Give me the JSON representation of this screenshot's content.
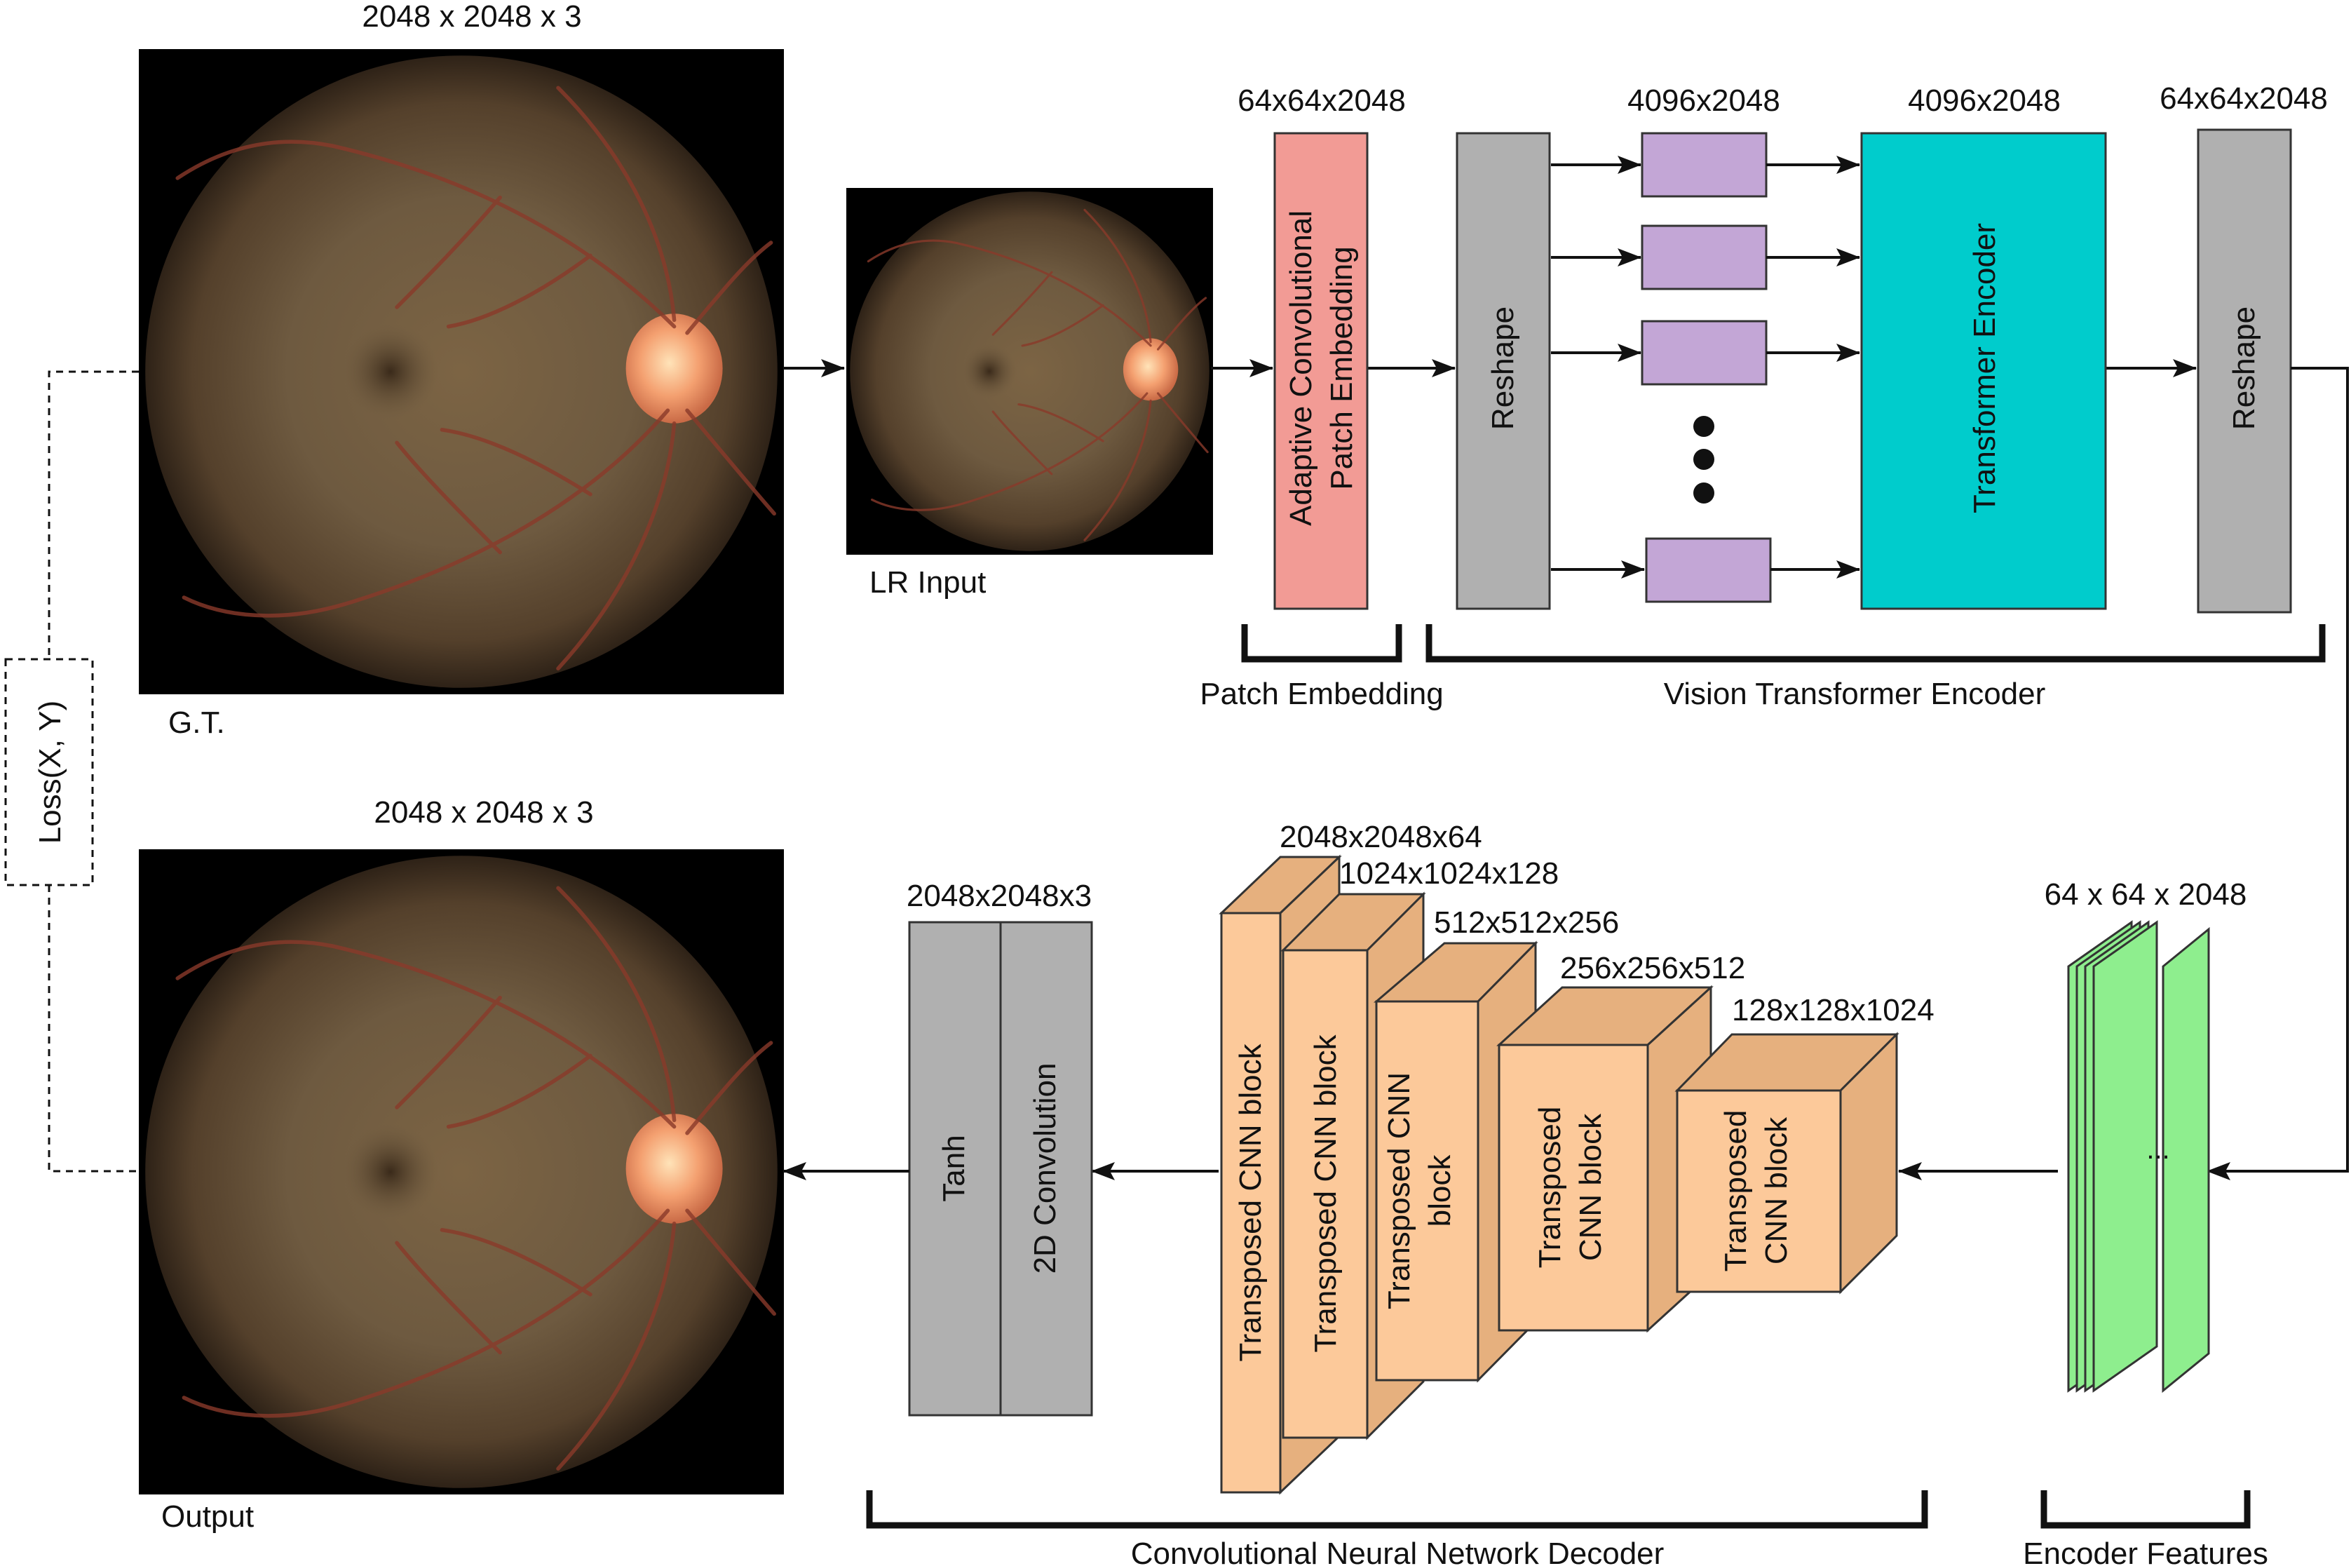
{
  "images": {
    "gt": {
      "size_label": "2048 x 2048 x 3",
      "caption": "G.T."
    },
    "lr": {
      "caption": "LR Input"
    },
    "output": {
      "size_label": "2048 x 2048 x 3",
      "caption": "Output"
    }
  },
  "loss": {
    "label": "Loss(X, Y)"
  },
  "encoder": {
    "patch_embed": {
      "dim": "64x64x2048",
      "label_line1": "Adaptive Convolutional",
      "label_line2": "Patch Embedding"
    },
    "reshape_in": {
      "label": "Reshape"
    },
    "tokens": {
      "dim": "4096x2048"
    },
    "transformer": {
      "dim": "4096x2048",
      "label": "Transformer Encoder"
    },
    "reshape_out": {
      "dim": "64x64x2048",
      "label": "Reshape"
    }
  },
  "groups": {
    "patch_embedding": "Patch Embedding",
    "vit_encoder": "Vision Transformer Encoder",
    "cnn_decoder": "Convolutional Neural Network Decoder",
    "encoder_features": "Encoder Features"
  },
  "features": {
    "dim": "64 x 64 x 2048",
    "ellipsis": "..."
  },
  "decoder": {
    "blocks": [
      {
        "dim": "2048x2048x64",
        "line1": "Transposed CNN block",
        "line2": ""
      },
      {
        "dim": "1024x1024x128",
        "line1": "Transposed CNN block",
        "line2": ""
      },
      {
        "dim": "512x512x256",
        "line1": "Transposed CNN",
        "line2": "block"
      },
      {
        "dim": "256x256x512",
        "line1": "Transposed",
        "line2": "CNN block"
      },
      {
        "dim": "128x128x1024",
        "line1": "Transposed",
        "line2": "CNN block"
      }
    ],
    "output_head": {
      "dim": "2048x2048x3",
      "tanh": "Tanh",
      "conv": "2D Convolution"
    }
  },
  "colors": {
    "patch_embed": "#f29b95",
    "gray_block": "#b0b0b0",
    "token": "#c3a6d6",
    "transformer": "#00cccc",
    "decoder_front": "#fcc99a",
    "decoder_side": "#e6b07e",
    "feature": "#8eee8e"
  }
}
